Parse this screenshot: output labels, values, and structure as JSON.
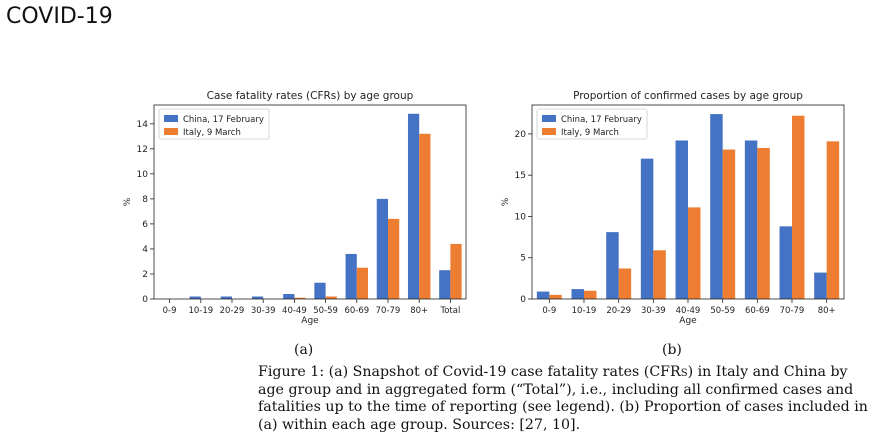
{
  "slide": {
    "title": "COVID-19"
  },
  "chart_data": [
    {
      "type": "bar",
      "title": "Case fatality rates (CFRs) by age group",
      "xlabel": "Age",
      "ylabel": "%",
      "ylim": [
        0,
        15.5
      ],
      "yticks": [
        0,
        2,
        4,
        6,
        8,
        10,
        12,
        14
      ],
      "categories": [
        "0-9",
        "10-19",
        "20-29",
        "30-39",
        "40-49",
        "50-59",
        "60-69",
        "70-79",
        "80+",
        "Total"
      ],
      "series": [
        {
          "name": "China, 17 February",
          "color": "#4472c4",
          "values": [
            0,
            0.2,
            0.2,
            0.2,
            0.4,
            1.3,
            3.6,
            8.0,
            14.8,
            2.3
          ]
        },
        {
          "name": "Italy, 9 March",
          "color": "#ed7d31",
          "values": [
            0,
            0,
            0,
            0,
            0.1,
            0.2,
            2.5,
            6.4,
            13.2,
            4.4
          ]
        }
      ],
      "legend": "top-left",
      "label": "(a)"
    },
    {
      "type": "bar",
      "title": "Proportion of confirmed cases by age group",
      "xlabel": "Age",
      "ylabel": "%",
      "ylim": [
        0,
        23.5
      ],
      "yticks": [
        0,
        5,
        10,
        15,
        20
      ],
      "categories": [
        "0-9",
        "10-19",
        "20-29",
        "30-39",
        "40-49",
        "50-59",
        "60-69",
        "70-79",
        "80+"
      ],
      "series": [
        {
          "name": "China, 17 February",
          "color": "#4472c4",
          "values": [
            0.9,
            1.2,
            8.1,
            17.0,
            19.2,
            22.4,
            19.2,
            8.8,
            3.2
          ]
        },
        {
          "name": "Italy, 9 March",
          "color": "#ed7d31",
          "values": [
            0.5,
            1.0,
            3.7,
            5.9,
            11.1,
            18.1,
            18.3,
            22.2,
            19.1
          ]
        }
      ],
      "legend": "top-left",
      "label": "(b)"
    }
  ],
  "caption": {
    "part1": "Figure 1: (a) Snapshot of Covid-19 case fatality rates (",
    "sc": "CFRs",
    "part2": ") in Italy and China by age group and in aggregated form (“Total”), i.e., including all confirmed cases and fatalities up to the time of reporting (see legend). (b) Proportion of cases included in (a) within each age group. Sources: [27, 10]."
  }
}
